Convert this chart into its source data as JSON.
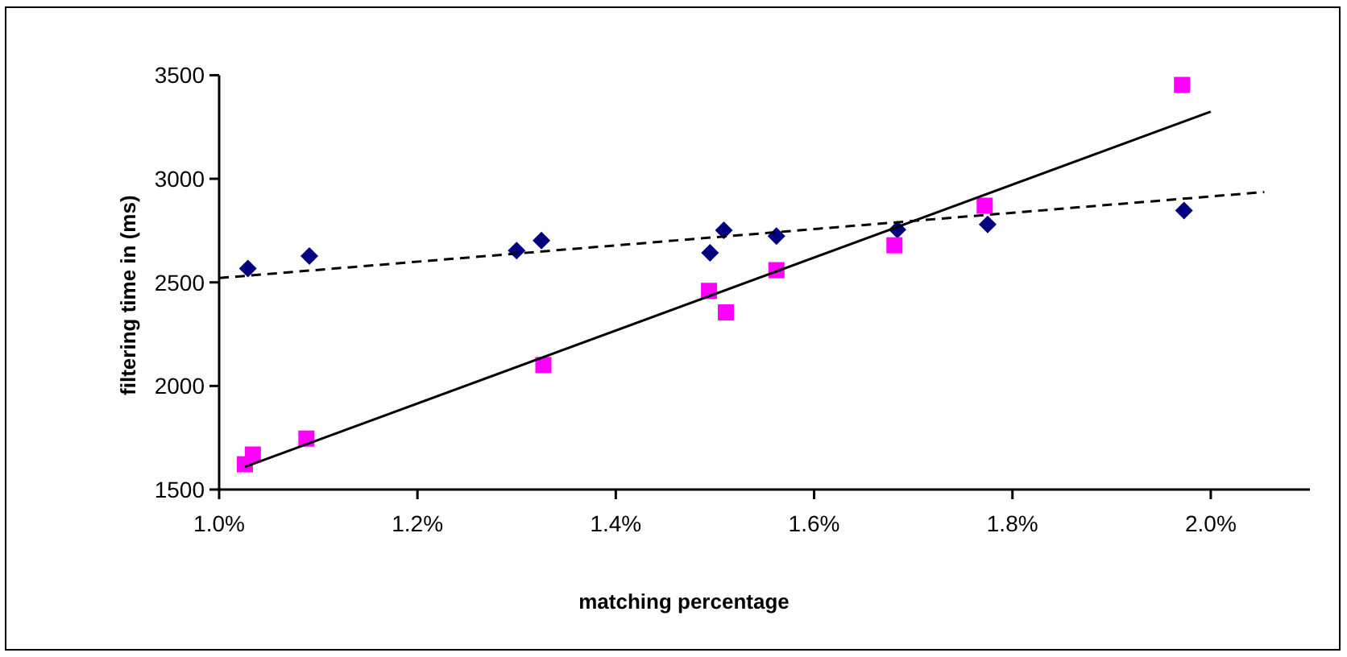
{
  "chart_data": {
    "type": "scatter",
    "xlabel": "matching percentage",
    "ylabel": "filtering time in (ms)",
    "xlim": [
      1.0,
      2.1
    ],
    "xticks": [
      {
        "value": 1.0,
        "label": "1.0%"
      },
      {
        "value": 1.2,
        "label": "1.2%"
      },
      {
        "value": 1.4,
        "label": "1.4%"
      },
      {
        "value": 1.6,
        "label": "1.6%"
      },
      {
        "value": 1.8,
        "label": "1.8%"
      },
      {
        "value": 2.0,
        "label": "2.0%"
      }
    ],
    "ylim": [
      1500,
      3500
    ],
    "yticks": [
      1500,
      2000,
      2500,
      3000,
      3500
    ],
    "grid": false,
    "series": [
      {
        "marker": "diamond",
        "color": "#000080",
        "x": [
          1.029,
          1.091,
          1.3,
          1.325,
          1.495,
          1.509,
          1.562,
          1.684,
          1.775,
          1.973
        ],
        "values": [
          2567,
          2627,
          2653,
          2702,
          2643,
          2751,
          2723,
          2754,
          2780,
          2847
        ]
      },
      {
        "marker": "square",
        "color": "#ff00ff",
        "x": [
          1.026,
          1.034,
          1.088,
          1.327,
          1.494,
          1.511,
          1.562,
          1.681,
          1.772,
          1.971
        ],
        "values": [
          1622,
          1669,
          1746,
          2101,
          2459,
          2355,
          2559,
          2679,
          2870,
          3453
        ]
      },
      {
        "type": "line",
        "marker": "none",
        "line_style": "solid",
        "color": "#000000",
        "x": [
          1.026,
          2.0
        ],
        "values": [
          1609,
          3324
        ]
      },
      {
        "type": "line",
        "marker": "none",
        "line_style": "dashed",
        "color": "#000000",
        "x": [
          1.0,
          2.054
        ],
        "values": [
          2521,
          2936
        ]
      }
    ]
  }
}
